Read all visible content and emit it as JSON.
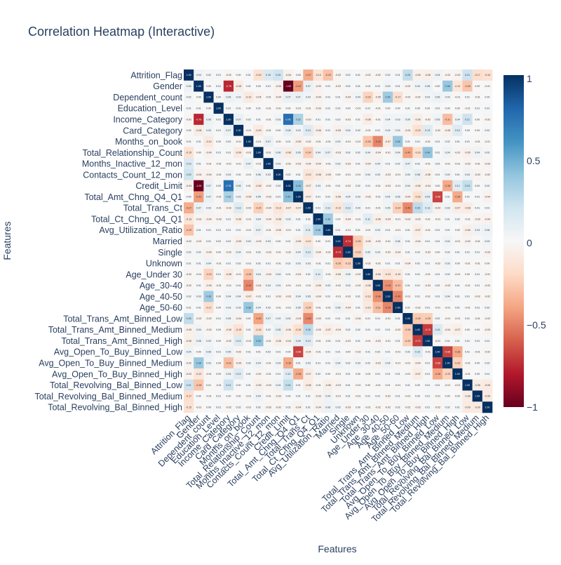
{
  "chart_data": {
    "type": "heatmap",
    "title": "Correlation Heatmap (Interactive)",
    "xlabel": "Features",
    "ylabel": "Features",
    "features": [
      "Attrition_Flag",
      "Gender",
      "Dependent_count",
      "Education_Level",
      "Income_Category",
      "Card_Category",
      "Months_on_book",
      "Total_Relationship_Count",
      "Months_Inactive_12_mon",
      "Contacts_Count_12_mon",
      "Credit_Limit",
      "Total_Amt_Chng_Q4_Q1",
      "Total_Trans_Ct",
      "Total_Ct_Chng_Q4_Q1",
      "Avg_Utilization_Ratio",
      "Married",
      "Single",
      "Unknown",
      "Age_Under 30",
      "Age_30-40",
      "Age_40-50",
      "Age_50-60",
      "Total_Trans_Amt_Binned_Low",
      "Total_Trans_Amt_Binned_Medium",
      "Total_Trans_Amt_Binned_High",
      "Avg_Open_To_Buy_Binned_Low",
      "Avg_Open_To_Buy_Binned_Medium",
      "Avg_Open_To_Buy_Binned_High",
      "Total_Revolving_Bal_Binned_Low",
      "Total_Revolving_Bal_Binned_Medium",
      "Total_Revolving_Bal_Binned_High"
    ],
    "zmin": -1,
    "zmax": 1,
    "colorbar_ticks": [
      "1",
      "0.5",
      "0",
      "−0.5",
      "−1"
    ],
    "colorscale": [
      "#67001f",
      "#b2182b",
      "#d6604d",
      "#f4a582",
      "#fddbc7",
      "#f7f7f7",
      "#d1e5f0",
      "#92c5de",
      "#4393c3",
      "#2166ac",
      "#053061"
    ],
    "z": [
      [
        1,
        0.04,
        0.02,
        0.01,
        -0.02,
        0,
        0.01,
        -0.15,
        0.15,
        0.2,
        -0.04,
        0,
        -0.37,
        -0.13,
        -0.29,
        -0.02,
        0.02,
        0.01,
        -0.02,
        -0.02,
        0.02,
        0.01,
        0.25,
        -0.05,
        -0.06,
        0.04,
        -0.02,
        -0.03,
        0.21,
        -0.17,
        -0.15
      ],
      [
        0.04,
        1,
        0,
        0.01,
        -0.76,
        -0.08,
        0.01,
        0,
        0.01,
        -0.04,
        -1,
        -0.42,
        0.07,
        -0.03,
        0.01,
        -0.02,
        0.02,
        0.01,
        -0.01,
        0.01,
        0.03,
        0.01,
        -0.02,
        0.04,
        0.06,
        0,
        0.38,
        -0.12,
        -0.28,
        0,
        -0.01
      ],
      [
        0.02,
        0,
        1,
        0,
        0.06,
        0.03,
        -0.1,
        -0.04,
        -0.01,
        -0.04,
        0.07,
        0.07,
        0.03,
        -0.04,
        0.01,
        0.01,
        -0.04,
        0.04,
        -0.23,
        -0.05,
        0.36,
        -0.17,
        -0.02,
        -0.02,
        0.03,
        0.06,
        0.03,
        -0.01,
        0.01,
        -0.01,
        0
      ],
      [
        0.01,
        0.01,
        0,
        1,
        0.01,
        0.01,
        0,
        0.01,
        -0.01,
        -0.01,
        0,
        -0.01,
        -0.01,
        -0.03,
        0.01,
        0.02,
        0,
        -0.01,
        0.01,
        -0.01,
        0,
        0,
        0.01,
        0,
        0,
        0.01,
        0,
        0,
        -0.01,
        0.01,
        0.01
      ],
      [
        -0.02,
        -0.76,
        0.06,
        0.01,
        1,
        0.07,
        0.02,
        0.01,
        -0.01,
        0.03,
        0.76,
        0.32,
        -0.03,
        0.01,
        0.01,
        0.02,
        -0.02,
        0.01,
        -0.08,
        -0.01,
        0.04,
        0.03,
        0.05,
        -0.06,
        -0.02,
        0.05,
        -0.31,
        0.04,
        0.21,
        0,
        -0.02
      ],
      [
        0,
        -0.08,
        0.03,
        0.01,
        0.07,
        1,
        -0.01,
        -0.09,
        -0.01,
        0,
        0.08,
        0.03,
        0.13,
        -0.06,
        0.01,
        -0.05,
        0.04,
        0.02,
        -0.01,
        0.01,
        0.04,
        0.03,
        -0.04,
        -0.15,
        0.13,
        -0.02,
        -0.05,
        0.13,
        0,
        0,
        0.02
      ],
      [
        0.01,
        0.01,
        -0.1,
        0,
        0.02,
        -0.01,
        1,
        -0.01,
        0.07,
        -0.01,
        0.01,
        -0.05,
        -0.02,
        -0.01,
        -0.01,
        0.03,
        -0.01,
        -0.01,
        -0.28,
        -0.49,
        -0.07,
        0.38,
        0.01,
        0.01,
        -0.01,
        0.01,
        0.02,
        0.01,
        0.01,
        -0.01,
        -0.01
      ],
      [
        -0.15,
        0,
        -0.04,
        0.01,
        0.01,
        -0.09,
        -0.01,
        1,
        -0.01,
        0.06,
        -0.08,
        0.05,
        -0.24,
        0.04,
        0.07,
        -0.03,
        0.02,
        0.02,
        0.04,
        -0.04,
        -0.01,
        0.04,
        -0.4,
        -0.16,
        0.4,
        0.01,
        0.04,
        -0.02,
        -0.05,
        0.04,
        0.02
      ],
      [
        0.15,
        0.01,
        -0.01,
        -0.01,
        -0.01,
        -0.01,
        0.07,
        -0.01,
        1,
        0.03,
        -0.02,
        -0.03,
        -0.04,
        -0.04,
        -0.01,
        0.03,
        -0.03,
        0.01,
        -0.04,
        0.04,
        0.01,
        0.02,
        0.07,
        0.02,
        -0.01,
        0.02,
        -0.01,
        -0.01,
        -0.03,
        -0.01,
        -0.03
      ],
      [
        0.2,
        -0.04,
        -0.04,
        -0.01,
        0.03,
        0,
        -0.01,
        0.06,
        0.03,
        1,
        0.02,
        0.01,
        -0.13,
        -0.08,
        -0.05,
        0,
        -0.01,
        -0.01,
        0.04,
        0.03,
        -0.03,
        -0.01,
        0.03,
        0.08,
        -0.06,
        0.01,
        0.03,
        0.01,
        0.04,
        -0.03,
        -0.02
      ],
      [
        -0.04,
        -1,
        0.07,
        0,
        0.76,
        0.08,
        0.01,
        -0.08,
        -0.02,
        0.02,
        1,
        0.42,
        -0.07,
        0.03,
        -0.01,
        0.01,
        -0.02,
        0.02,
        0.01,
        -0.01,
        -0.03,
        -0.01,
        0.04,
        -0.06,
        -0.04,
        0,
        -0.38,
        0.12,
        0.24,
        0,
        0.02
      ],
      [
        0,
        -0.42,
        0.07,
        -0.01,
        0.32,
        0.03,
        -0.05,
        0.05,
        -0.03,
        0.01,
        0.42,
        1,
        -0.07,
        0.01,
        0.01,
        -0.06,
        0.04,
        0.03,
        -0.03,
        -0.01,
        0.04,
        0.05,
        -0.04,
        -0.16,
        0.09,
        -0.68,
        0.01,
        -0.38,
        0.01,
        0.01,
        -0.04
      ],
      [
        -0.37,
        0.07,
        0.03,
        -0.01,
        -0.03,
        0.13,
        -0.02,
        -0.24,
        -0.04,
        -0.13,
        -0.07,
        -0.07,
        1,
        0.01,
        0.11,
        -0.12,
        0.13,
        0.03,
        0.01,
        -0.01,
        0.05,
        -0.24,
        -0.48,
        0.26,
        0.13,
        -0.04,
        0.03,
        -0.07,
        -0.08,
        0.01,
        0.01
      ],
      [
        -0.13,
        -0.03,
        -0.04,
        -0.03,
        0.01,
        -0.06,
        -0.01,
        0.04,
        -0.04,
        -0.08,
        0.03,
        0.01,
        0.01,
        1,
        0.36,
        0,
        -0.04,
        -0.01,
        0.11,
        -0.06,
        -0.04,
        -0.01,
        -0.03,
        -0.03,
        -0.01,
        -0.01,
        0.01,
        0.02,
        -0.01,
        -0.03,
        -0.04
      ],
      [
        -0.29,
        0.01,
        0.01,
        0.01,
        0.01,
        0.01,
        -0.01,
        0.07,
        -0.01,
        -0.05,
        -0.01,
        0.01,
        0.11,
        0.36,
        1,
        0.01,
        -0.01,
        0.01,
        -0.01,
        0.03,
        0.01,
        -0.01,
        0.01,
        -0.07,
        -0.01,
        0.01,
        0.01,
        0,
        -0.06,
        0.04,
        0.06
      ],
      [
        -0.02,
        -0.02,
        0.01,
        0.02,
        0.02,
        -0.05,
        0.03,
        -0.03,
        0.03,
        0,
        0.01,
        -0.06,
        -0.12,
        0,
        0.01,
        1,
        -0.74,
        -0.26,
        -0.06,
        -0.02,
        -0.01,
        0.06,
        0.01,
        -0.04,
        0.01,
        0.01,
        0.04,
        -0.01,
        -0.03,
        -0.01,
        0.03
      ],
      [
        0.02,
        0.02,
        -0.04,
        0,
        -0.02,
        0.04,
        -0.01,
        0.02,
        -0.03,
        -0.01,
        -0.02,
        0.04,
        0.13,
        -0.04,
        -0.01,
        -0.74,
        1,
        -0.23,
        0.05,
        0.03,
        -0.02,
        -0.04,
        0.01,
        0.02,
        -0.02,
        0,
        0.02,
        0.01,
        0.01,
        0.01,
        -0.03
      ],
      [
        0.01,
        0.01,
        0.04,
        -0.01,
        0.01,
        0.02,
        -0.01,
        0.02,
        0.01,
        -0.01,
        0.02,
        0.03,
        0.03,
        -0.01,
        0.01,
        -0.26,
        -0.23,
        1,
        -0.02,
        -0.02,
        0.01,
        0.01,
        -0.04,
        0.02,
        0.01,
        -0.02,
        0.03,
        0,
        -0.01,
        -0.01,
        0
      ],
      [
        -0.02,
        -0.01,
        -0.23,
        0.01,
        -0.08,
        -0.01,
        -0.28,
        0.04,
        -0.04,
        0.04,
        0.01,
        -0.03,
        0.01,
        0.11,
        -0.01,
        -0.06,
        0.05,
        -0.02,
        1,
        -0.08,
        -0.13,
        -0.1,
        0.01,
        0.01,
        -0.01,
        0.01,
        0.02,
        -0.01,
        0,
        0.01,
        -0.01
      ],
      [
        -0.02,
        0.01,
        -0.05,
        -0.01,
        -0.01,
        0.01,
        -0.49,
        -0.04,
        0.04,
        0.03,
        -0.01,
        -0.01,
        -0.01,
        -0.06,
        0.03,
        -0.02,
        0.03,
        -0.02,
        -0.08,
        1,
        -0.46,
        -0.31,
        0.01,
        0.01,
        -0.03,
        0.02,
        -0.03,
        0.01,
        -0.01,
        0.01,
        -0.02
      ],
      [
        0.02,
        0.03,
        0.36,
        0,
        0.04,
        0.04,
        -0.07,
        -0.01,
        0.01,
        -0.03,
        -0.03,
        0.04,
        0.05,
        -0.04,
        0.01,
        -0.01,
        -0.02,
        0.01,
        -0.13,
        -0.46,
        1,
        -0.49,
        -0.01,
        0.01,
        -0.01,
        0.01,
        0.04,
        0.01,
        0.01,
        -0.02,
        -0.02
      ],
      [
        0.01,
        0.01,
        -0.17,
        0,
        0.03,
        0.03,
        0.38,
        0.04,
        0.02,
        -0.01,
        -0.01,
        0.05,
        -0.24,
        -0.01,
        -0.01,
        0.06,
        -0.04,
        0.01,
        -0.1,
        -0.31,
        -0.49,
        1,
        0.01,
        -0.02,
        0.01,
        -0.01,
        -0.01,
        0.01,
        -0.01,
        0.01,
        0.02
      ],
      [
        0.25,
        -0.02,
        -0.02,
        0.01,
        0.05,
        -0.04,
        0.01,
        -0.4,
        0.07,
        0.03,
        0.04,
        -0.04,
        -0.48,
        -0.03,
        0.01,
        0.01,
        0.01,
        -0.04,
        0.01,
        0.01,
        -0.01,
        0.01,
        1,
        -0.26,
        -0.25,
        0.02,
        -0.01,
        -0.01,
        0.01,
        -0.01,
        -0.02
      ],
      [
        -0.05,
        0.04,
        -0.02,
        0,
        -0.06,
        -0.15,
        0.01,
        -0.16,
        0.02,
        0.08,
        -0.06,
        -0.16,
        0.26,
        -0.03,
        -0.07,
        -0.04,
        0.02,
        0.02,
        0.01,
        0.01,
        0.01,
        -0.02,
        -0.26,
        1,
        -0.7,
        0.15,
        -0.04,
        -0.07,
        0,
        0,
        -0.03
      ],
      [
        -0.06,
        0.06,
        0.03,
        0,
        -0.02,
        0.13,
        -0.01,
        0.4,
        -0.01,
        -0.06,
        -0.04,
        0.09,
        0.13,
        -0.01,
        -0.01,
        0.01,
        -0.02,
        0.01,
        -0.01,
        -0.03,
        -0.01,
        0.01,
        -0.25,
        -0.7,
        1,
        -0.01,
        0.01,
        0.01,
        0.01,
        0.01,
        0.01
      ],
      [
        0.04,
        0,
        0.06,
        0.01,
        0.05,
        -0.02,
        0.01,
        0.01,
        0.02,
        0.01,
        0,
        -0.68,
        -0.04,
        -0.01,
        0.01,
        0.01,
        0,
        -0.02,
        0.01,
        0.02,
        0.01,
        -0.01,
        0.02,
        0.15,
        -0.01,
        1,
        -0.68,
        -0.38,
        0.01,
        -0.01,
        -0.02
      ],
      [
        -0.02,
        0.38,
        0.03,
        0,
        -0.31,
        -0.05,
        0.02,
        0.04,
        -0.01,
        0.03,
        -0.38,
        0.01,
        0.03,
        0.01,
        0.01,
        0.04,
        0.02,
        0.03,
        0.02,
        -0.03,
        0.04,
        -0.01,
        -0.01,
        -0.04,
        0.01,
        -0.68,
        1,
        -0.23,
        -0.01,
        0,
        0.02
      ],
      [
        -0.03,
        -0.12,
        -0.01,
        0,
        0.04,
        0.13,
        0.01,
        -0.02,
        -0.01,
        0.01,
        0.12,
        -0.38,
        -0.07,
        0.02,
        0,
        -0.01,
        0.01,
        0,
        -0.01,
        0.01,
        0.01,
        0.01,
        -0.01,
        -0.07,
        0.01,
        -0.38,
        -0.23,
        1,
        -0.01,
        0,
        0.01
      ],
      [
        0.21,
        -0.28,
        0.01,
        -0.01,
        0.21,
        0,
        0.01,
        -0.05,
        -0.03,
        0.04,
        0.24,
        0.01,
        -0.08,
        -0.01,
        -0.06,
        -0.03,
        0.01,
        -0.01,
        0,
        -0.01,
        0.01,
        -0.01,
        0.01,
        0,
        0.01,
        0.01,
        -0.01,
        -0.01,
        1,
        -0.08,
        -0.09
      ],
      [
        -0.17,
        0,
        -0.01,
        0.01,
        0,
        0,
        -0.01,
        0.04,
        -0.01,
        -0.03,
        0,
        0.01,
        0.01,
        -0.03,
        0.04,
        -0.01,
        0.01,
        -0.01,
        0.01,
        0.01,
        -0.02,
        0.01,
        -0.01,
        0,
        0.01,
        -0.01,
        0,
        0,
        -0.08,
        1,
        -0.09
      ],
      [
        -0.15,
        -0.01,
        0,
        0.01,
        -0.02,
        0.02,
        -0.01,
        0.02,
        -0.03,
        -0.02,
        0.02,
        -0.04,
        0.01,
        -0.04,
        0.06,
        0.03,
        -0.03,
        0,
        -0.01,
        -0.02,
        -0.02,
        0.02,
        -0.02,
        -0.03,
        0.01,
        -0.02,
        0.02,
        0.01,
        -0.09,
        -0.09,
        1
      ]
    ]
  }
}
